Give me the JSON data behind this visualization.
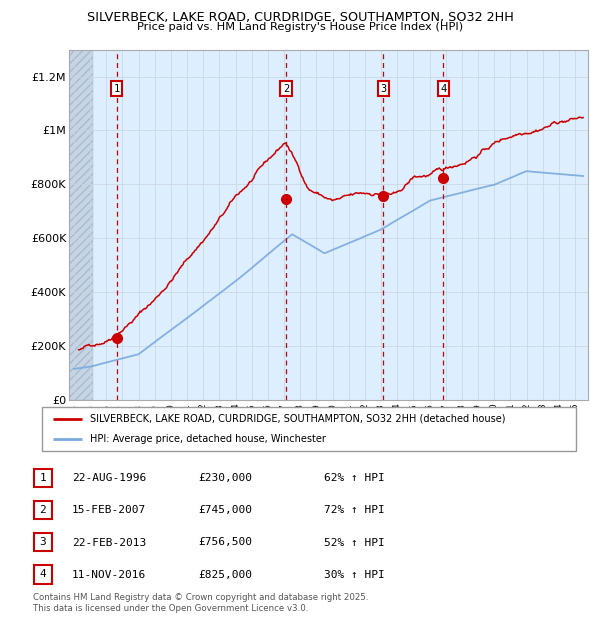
{
  "title1": "SILVERBECK, LAKE ROAD, CURDRIDGE, SOUTHAMPTON, SO32 2HH",
  "title2": "Price paid vs. HM Land Registry's House Price Index (HPI)",
  "ylabel_ticks": [
    "£0",
    "£200K",
    "£400K",
    "£600K",
    "£800K",
    "£1M",
    "£1.2M"
  ],
  "ytick_values": [
    0,
    200000,
    400000,
    600000,
    800000,
    1000000,
    1200000
  ],
  "ylim": [
    0,
    1300000
  ],
  "xlim_start": 1993.7,
  "xlim_end": 2025.8,
  "hatch_end": 1995.2,
  "sale_dates": [
    1996.644,
    2007.12,
    2013.14,
    2016.86
  ],
  "sale_prices": [
    230000,
    745000,
    756500,
    825000
  ],
  "sale_labels": [
    "1",
    "2",
    "3",
    "4"
  ],
  "sale_date_strs": [
    "22-AUG-1996",
    "15-FEB-2007",
    "22-FEB-2013",
    "11-NOV-2016"
  ],
  "sale_price_strs": [
    "£230,000",
    "£745,000",
    "£756,500",
    "£825,000"
  ],
  "sale_hpi_strs": [
    "62% ↑ HPI",
    "72% ↑ HPI",
    "52% ↑ HPI",
    "30% ↑ HPI"
  ],
  "legend_line1": "SILVERBECK, LAKE ROAD, CURDRIDGE, SOUTHAMPTON, SO32 2HH (detached house)",
  "legend_line2": "HPI: Average price, detached house, Winchester",
  "footer": "Contains HM Land Registry data © Crown copyright and database right 2025.\nThis data is licensed under the Open Government Licence v3.0.",
  "red_color": "#cc0000",
  "blue_color": "#7aaadd",
  "background_plot": "#ddeeff",
  "grid_color": "#c8d4e0"
}
